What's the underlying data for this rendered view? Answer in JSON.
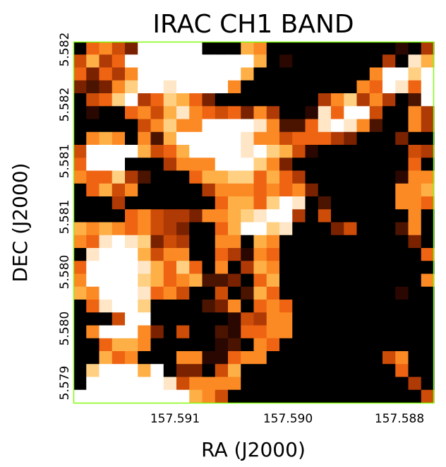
{
  "chart_data": {
    "type": "heatmap",
    "title": "IRAC CH1 BAND",
    "xlabel": "RA (J2000)",
    "ylabel": "DEC (J2000)",
    "x_ticks": [
      "157.591",
      "157.590",
      "157.588"
    ],
    "y_ticks": [
      "5.579",
      "5.580",
      "5.580",
      "5.581",
      "5.581",
      "5.582",
      "5.582"
    ],
    "colormap": "gist_heat",
    "frame_color": "#7cfc00",
    "grid": false,
    "legend": "none",
    "palette": [
      "#000000",
      "#2a0700",
      "#4a1400",
      "#7a2200",
      "#b03a06",
      "#cc4c08",
      "#ef6412",
      "#fc8a24",
      "#feb046",
      "#ffd082",
      "#ffe6c6",
      "#ffffff"
    ],
    "pixel_levels": [
      "0 6 7 5 3 11 11 11 11 11 0 0 0 8 7 0 0 0 0 0 0 0 0 0 0 1 0 4",
      "5 8 4 6 11 11 11 11 11 11 11 11 11 11 8 0 1 0 0 0 0 0 0 0 4 0 10 8",
      "6 3 6 4 7 11 11 11 11 11 11 11 11 8 0 0 0 0 0 0 0 0 0 7 11 11 9 11",
      "3 2 3 7 9 11 11 10 11 11 11 11 7 0 0 0 0 0 0 0 0 0 7 6 11 10 6 11",
      "0 5 6 9 11 4 6 9 8 6 3 0 0 0 0 0 0 0 0 4 7 9 4 7 4 0 2 11",
      "0 1 0 0 6 7 5 8 10 7 6 5 6 3 7 4 0 0 1 10 6 11 11 5 0 0 7 4",
      "0 0 0 0 0 5 7 9 7 7 11 11 11 11 10 7 2 2 6 10 11 10 7 2 0 0 7 4",
      "0 7 8 7 0 7 2 8 11 11 11 11 11 10 7 7 5 6 6 6 4 3 0 0 0 3 0 0",
      "5 11 11 11 11 8 5 6 8 11 11 11 11 10 11 9 8 5 1 0 0 0 0 0 0 0 5 4",
      "6 11 11 11 0 0 0 4 7 7 7 11 11 11 9 7 3 0 0 0 0 0 0 0 0 0 6 0",
      "7 6 6 9 4 2 0 0 0 6 8 8 9 9 6 8 6 4 0 0 0 0 0 0 0 1 7 7",
      "0 6 8 5 7 0 0 0 0 0 4 7 7 7 6 7 6 7 3 0 0 0 0 0 0 7 7 8",
      "0 0 0 4 0 0 0 0 0 0 0 6 8 8 6 9 11 10 0 2 0 0 0 0 0 7 7 6",
      "0 0 0 0 6 7 5 4 4 3 7 7 8 9 10 11 11 4 0 5 0 0 0 0 0 0 7 0",
      "8 7 8 7 6 7 5 4 3 0 0 6 8 11 11 9 10 0 0 0 3 5 0 0 0 2 7 0",
      "7 6 10 11 10 9 3 5 4 0 0 7 7 0 8 7 0 0 0 0 0 0 0 0 0 0 3 0",
      "0 10 11 11 11 8 5 7 7 0 0 6 4 1 7 6 0 0 0 0 0 0 0 0 0 0 0 6",
      "6 11 11 11 11 10 8 6 9 6 0 7 0 4 8 7 0 0 0 0 0 0 0 0 0 0 0 0",
      "7 11 11 11 11 9 8 6 7 8 2 2 3 0 6 8 0 0 0 0 0 0 0 0 0 0 0 7",
      "8 7 11 11 11 10 6 7 5 0 0 5 0 2 8 6 0 0 0 0 0 0 0 0 0 1 0 0",
      "0 6 10 11 11 9 0 0 0 0 2 3 7 0 6 7 6 0 0 0 0 0 0 0 0 0 0 0",
      "0 0 0 5 11 11 0 0 0 0 0 0 1 5 4 7 7 0 0 0 0 0 0 0 0 0 0 0",
      "0 7 11 11 11 7 3 0 5 0 0 2 1 6 6 7 7 0 0 0 0 0 0 0 0 0 0 0",
      "0 0 6 8 8 7 0 0 0 0 0 1 2 0 7 6 0 0 0 0 0 0 0 0 0 0 0 0",
      "0 0 8 6 7 0 0 0 7 7 1 1 6 7 7 0 0 0 0 0 0 0 0 0 5 7 0 0",
      "0 9 11 11 11 8 11 0 3 3 0 5 8 0 0 0 0 0 0 0 0 0 0 0 0 6 0 0",
      "0 11 11 11 11 11 11 10 5 7 7 7 7 0 0 0 0 0 0 0 0 0 0 0 0 0 4 0",
      "11 11 11 11 11 11 11 11 11 8 7 5 0 0 0 0 0 0 0 0 0 0 0 0 0 0 0 5"
    ]
  }
}
